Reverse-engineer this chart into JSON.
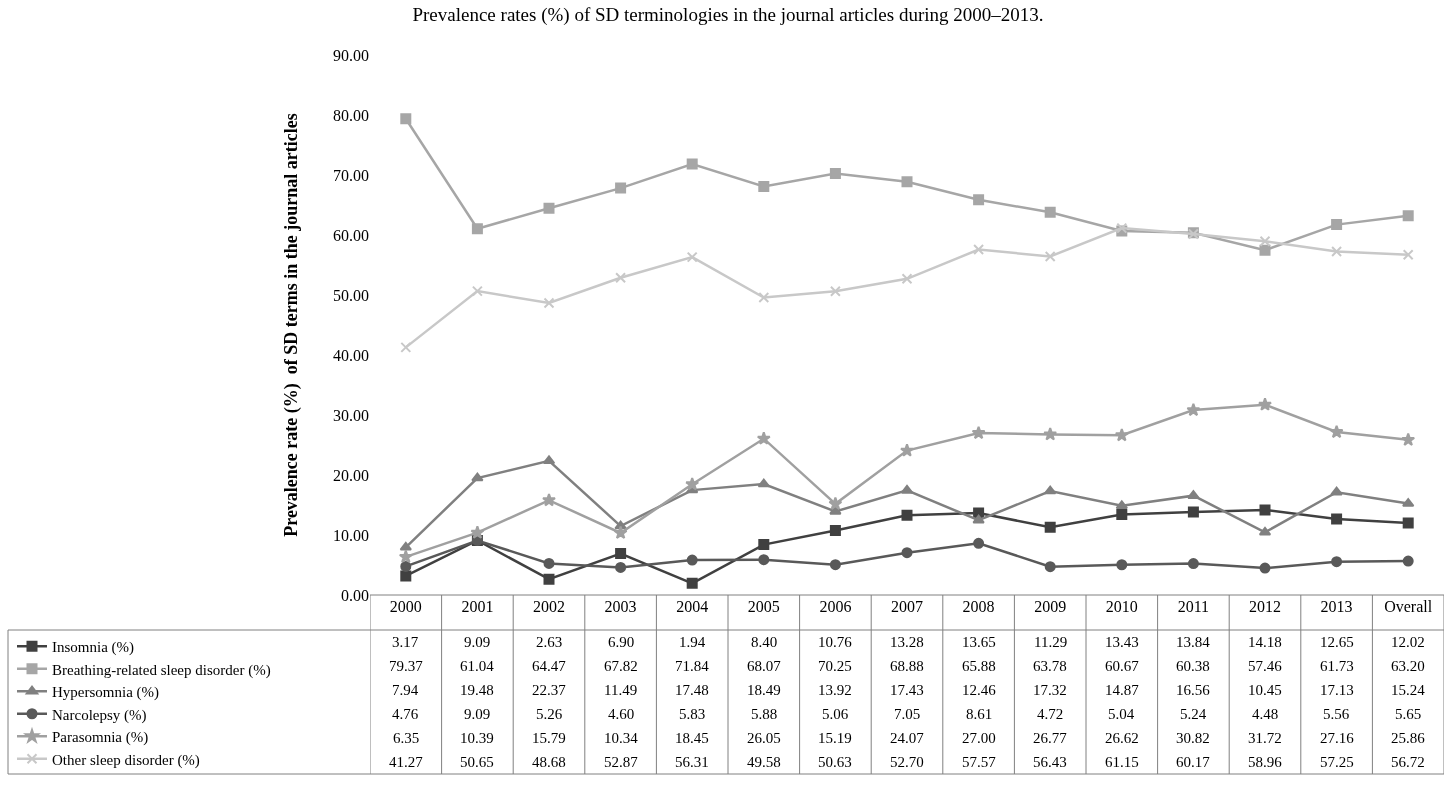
{
  "chart_data": {
    "type": "line",
    "title": "Prevalence rates (%) of SD terminologies in the journal articles during 2000‒2013.",
    "ylabel": "Prevalence rate (%)  of SD terms in the journal articles",
    "categories": [
      "2000",
      "2001",
      "2002",
      "2003",
      "2004",
      "2005",
      "2006",
      "2007",
      "2008",
      "2009",
      "2010",
      "2011",
      "2012",
      "2013",
      "Overall"
    ],
    "series": [
      {
        "name": "Insomnia (%)",
        "color": "#404040",
        "marker": "square",
        "values": [
          3.17,
          9.09,
          2.63,
          6.9,
          1.94,
          8.4,
          10.76,
          13.28,
          13.65,
          11.29,
          13.43,
          13.84,
          14.18,
          12.65,
          12.02
        ],
        "value_labels": [
          "3.17",
          "9.09",
          "2.63",
          "6.90",
          "1.94",
          "8.40",
          "10.76",
          "13.28",
          "13.65",
          "11.29",
          "13.43",
          "13.84",
          "14.18",
          "12.65",
          "12.02"
        ]
      },
      {
        "name": "Breathing-related sleep disorder (%)",
        "color": "#a6a6a6",
        "marker": "square",
        "values": [
          79.37,
          61.04,
          64.47,
          67.82,
          71.84,
          68.07,
          70.25,
          68.88,
          65.88,
          63.78,
          60.67,
          60.38,
          57.46,
          61.73,
          63.2
        ],
        "value_labels": [
          "79.37",
          "61.04",
          "64.47",
          "67.82",
          "71.84",
          "68.07",
          "70.25",
          "68.88",
          "65.88",
          "63.78",
          "60.67",
          "60.38",
          "57.46",
          "61.73",
          "63.20"
        ]
      },
      {
        "name": "Hypersomnia (%)",
        "color": "#808080",
        "marker": "triangle",
        "values": [
          7.94,
          19.48,
          22.37,
          11.49,
          17.48,
          18.49,
          13.92,
          17.43,
          12.46,
          17.32,
          14.87,
          16.56,
          10.45,
          17.13,
          15.24
        ],
        "value_labels": [
          "7.94",
          "19.48",
          "22.37",
          "11.49",
          "17.48",
          "18.49",
          "13.92",
          "17.43",
          "12.46",
          "17.32",
          "14.87",
          "16.56",
          "10.45",
          "17.13",
          "15.24"
        ]
      },
      {
        "name": "Narcolepsy (%)",
        "color": "#595959",
        "marker": "circle",
        "values": [
          4.76,
          9.09,
          5.26,
          4.6,
          5.83,
          5.88,
          5.06,
          7.05,
          8.61,
          4.72,
          5.04,
          5.24,
          4.48,
          5.56,
          5.65
        ],
        "value_labels": [
          "4.76",
          "9.09",
          "5.26",
          "4.60",
          "5.83",
          "5.88",
          "5.06",
          "7.05",
          "8.61",
          "4.72",
          "5.04",
          "5.24",
          "4.48",
          "5.56",
          "5.65"
        ]
      },
      {
        "name": "Parasomnia (%)",
        "color": "#a0a0a0",
        "marker": "star",
        "values": [
          6.35,
          10.39,
          15.79,
          10.34,
          18.45,
          26.05,
          15.19,
          24.07,
          27.0,
          26.77,
          26.62,
          30.82,
          31.72,
          27.16,
          25.86
        ],
        "value_labels": [
          "6.35",
          "10.39",
          "15.79",
          "10.34",
          "18.45",
          "26.05",
          "15.19",
          "24.07",
          "27.00",
          "26.77",
          "26.62",
          "30.82",
          "31.72",
          "27.16",
          "25.86"
        ]
      },
      {
        "name": "Other sleep disorder (%)",
        "color": "#c8c8c8",
        "marker": "cross",
        "values": [
          41.27,
          50.65,
          48.68,
          52.87,
          56.31,
          49.58,
          50.63,
          52.7,
          57.57,
          56.43,
          61.15,
          60.17,
          58.96,
          57.25,
          56.72
        ],
        "value_labels": [
          "41.27",
          "50.65",
          "48.68",
          "52.87",
          "56.31",
          "49.58",
          "50.63",
          "52.70",
          "57.57",
          "56.43",
          "61.15",
          "60.17",
          "58.96",
          "57.25",
          "56.72"
        ]
      }
    ],
    "ylim": [
      0,
      90
    ],
    "yticks": [
      {
        "value": 0,
        "label": "0.00"
      },
      {
        "value": 10,
        "label": "10.00"
      },
      {
        "value": 20,
        "label": "20.00"
      },
      {
        "value": 30,
        "label": "30.00"
      },
      {
        "value": 40,
        "label": "40.00"
      },
      {
        "value": 50,
        "label": "50.00"
      },
      {
        "value": 60,
        "label": "60.00"
      },
      {
        "value": 70,
        "label": "70.00"
      },
      {
        "value": 80,
        "label": "80.00"
      },
      {
        "value": 90,
        "label": "90.00"
      }
    ],
    "legend": "bottom left",
    "line_style": "solid"
  }
}
